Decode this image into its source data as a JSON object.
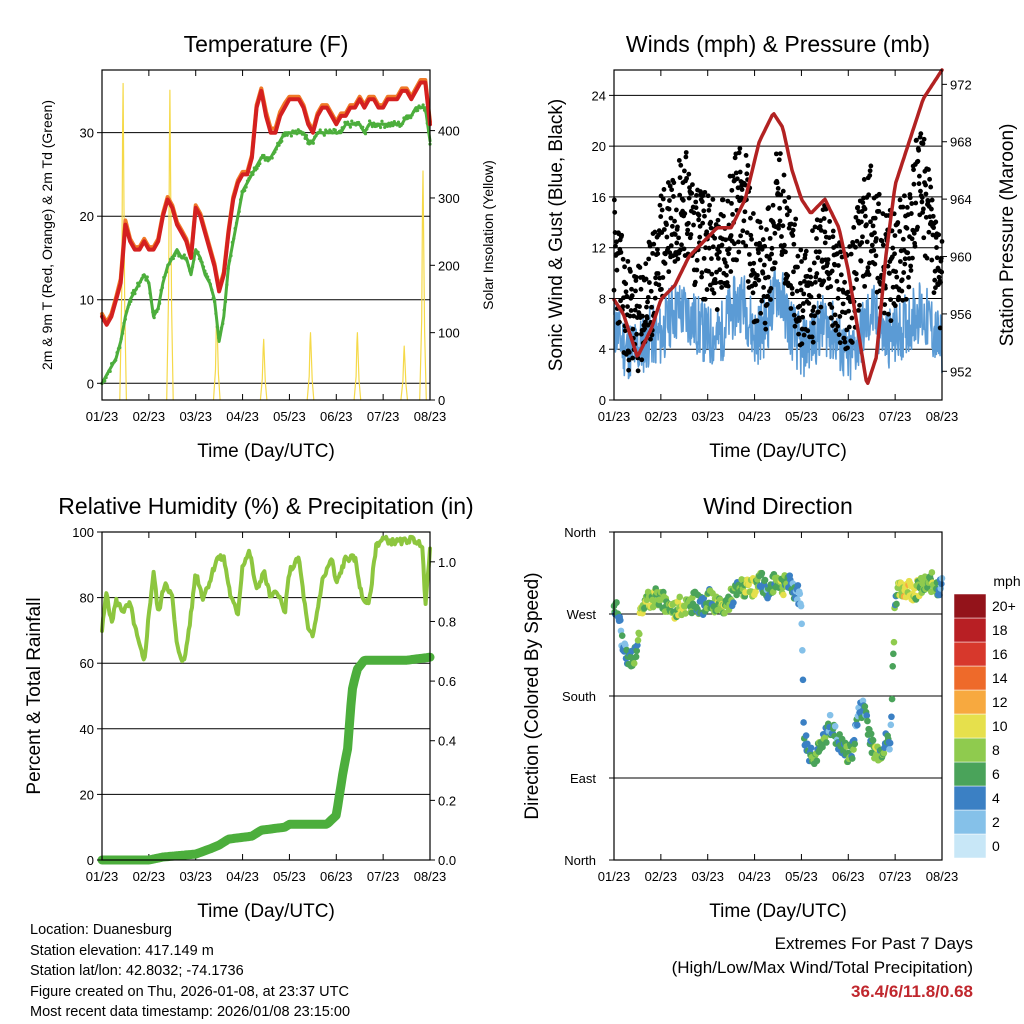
{
  "chart_data": [
    {
      "type": "line",
      "title": "Temperature (F)",
      "xlabel": "Time (Day/UTC)",
      "ylabel": "2m & 9m T (Red, Orange) & 2m Td (Green)",
      "ylabel_right": "Solar Insolation (Yellow)",
      "x_ticks": [
        "01/23",
        "02/23",
        "03/23",
        "04/23",
        "05/23",
        "06/23",
        "07/23",
        "08/23"
      ],
      "y_ticks": [
        0,
        10,
        20,
        30
      ],
      "y2_ticks": [
        0,
        100,
        200,
        300,
        400
      ],
      "ylim": [
        -2,
        37.5
      ],
      "y2lim": [
        0,
        490
      ],
      "grid": true,
      "x": [
        0.0,
        0.1,
        0.2,
        0.3,
        0.4,
        0.5,
        0.6,
        0.7,
        0.8,
        0.9,
        1.0,
        1.1,
        1.2,
        1.3,
        1.4,
        1.5,
        1.6,
        1.7,
        1.8,
        1.9,
        2.0,
        2.1,
        2.2,
        2.3,
        2.4,
        2.5,
        2.6,
        2.7,
        2.8,
        2.9,
        3.0,
        3.1,
        3.2,
        3.3,
        3.4,
        3.5,
        3.6,
        3.7,
        3.8,
        3.9,
        4.0,
        4.1,
        4.2,
        4.3,
        4.4,
        4.5,
        4.6,
        4.7,
        4.8,
        4.9,
        5.0,
        5.1,
        5.2,
        5.3,
        5.4,
        5.5,
        5.6,
        5.7,
        5.8,
        5.9,
        6.0,
        6.1,
        6.2,
        6.3,
        6.4,
        6.5,
        6.6,
        6.7,
        6.8,
        6.9,
        7.0
      ],
      "series": [
        {
          "name": "2m T",
          "color": "#d42020",
          "values": [
            8,
            7,
            8,
            10,
            12,
            19,
            17,
            16,
            16,
            17,
            16,
            16,
            17,
            20,
            22,
            21,
            19,
            18,
            17,
            15,
            21,
            20,
            18,
            16,
            14,
            11,
            13,
            18,
            22,
            24,
            25,
            25,
            27,
            33,
            35,
            32,
            30,
            30,
            32,
            33,
            34,
            34,
            34,
            33,
            31,
            30,
            32,
            33,
            33,
            32,
            31,
            32,
            32,
            33,
            33,
            34,
            33,
            34,
            34,
            33,
            33,
            34,
            34,
            34,
            35,
            35,
            34,
            35,
            36,
            36,
            31
          ]
        },
        {
          "name": "9m T",
          "color": "#f07a28",
          "values": [
            8.3,
            7.3,
            8.3,
            10.3,
            12.5,
            19.5,
            17.3,
            16.3,
            16.3,
            17.3,
            16.3,
            16.3,
            17.3,
            20.3,
            22.3,
            21.3,
            19.3,
            18.3,
            17.3,
            15.3,
            21.3,
            20.3,
            18.3,
            16.3,
            14.3,
            11.3,
            13.3,
            18.3,
            22.3,
            24.3,
            25.3,
            25.3,
            27.3,
            33.3,
            35.3,
            32.5,
            30.5,
            30.5,
            32.5,
            33.5,
            34.3,
            34.3,
            34.3,
            33.3,
            31.3,
            30.3,
            32.3,
            33.3,
            33.3,
            32.3,
            31.3,
            32.3,
            32.3,
            33.3,
            33.3,
            34.3,
            33.3,
            34.3,
            34.3,
            33.3,
            33.3,
            34.3,
            34.3,
            34.3,
            35.3,
            35.3,
            34.3,
            35.3,
            36.3,
            36.3,
            31.3
          ]
        },
        {
          "name": "2m Td",
          "color": "#4cae3c",
          "values": [
            0,
            1,
            2,
            3,
            5,
            8,
            10,
            11,
            12,
            13,
            12,
            8,
            9,
            12,
            14,
            15,
            16,
            15,
            15,
            13,
            16,
            15,
            13,
            12,
            10,
            5,
            8,
            14,
            17,
            20,
            23,
            24,
            25,
            26,
            27,
            27,
            27,
            28,
            29,
            30,
            30,
            30,
            30,
            30,
            29,
            29,
            30,
            30,
            30,
            30,
            30,
            30,
            31,
            31,
            31,
            31,
            30,
            31,
            31,
            31,
            31,
            31,
            31,
            31,
            31,
            32,
            32,
            33,
            33,
            33,
            29
          ]
        },
        {
          "name": "Solar Insolation",
          "color": "#f5d949",
          "axis": "right",
          "peaks": [
            {
              "day": 0.45,
              "value": 470
            },
            {
              "day": 1.45,
              "value": 460
            },
            {
              "day": 2.45,
              "value": 130
            },
            {
              "day": 3.45,
              "value": 90
            },
            {
              "day": 4.45,
              "value": 100
            },
            {
              "day": 5.45,
              "value": 100
            },
            {
              "day": 6.45,
              "value": 80
            },
            {
              "day": 6.85,
              "value": 340
            }
          ]
        }
      ]
    },
    {
      "type": "scatter",
      "title": "Winds (mph) & Pressure (mb)",
      "xlabel": "Time (Day/UTC)",
      "ylabel": "Sonic Wind & Gust (Blue, Black)",
      "ylabel_right": "Station Pressure (Maroon)",
      "x_ticks": [
        "01/23",
        "02/23",
        "03/23",
        "04/23",
        "05/23",
        "06/23",
        "07/23",
        "08/23"
      ],
      "y_ticks": [
        0,
        4,
        8,
        12,
        16,
        20,
        24
      ],
      "y2_ticks": [
        952,
        956,
        960,
        964,
        968,
        972
      ],
      "ylim": [
        0,
        26
      ],
      "y2lim": [
        950,
        973
      ],
      "grid": true,
      "series": [
        {
          "name": "Sonic Wind",
          "color": "#5b9bd5",
          "x": [
            0.0,
            0.25,
            0.5,
            0.75,
            1.0,
            1.25,
            1.5,
            1.75,
            2.0,
            2.25,
            2.5,
            2.75,
            3.0,
            3.25,
            3.5,
            3.75,
            4.0,
            4.25,
            4.5,
            4.75,
            5.0,
            5.25,
            5.5,
            5.75,
            6.0,
            6.25,
            6.5,
            6.75,
            7.0
          ],
          "values": [
            6,
            4,
            4,
            5,
            5,
            7,
            7,
            6,
            5,
            5,
            7,
            8,
            5,
            6,
            9,
            6,
            4,
            5,
            6,
            5,
            3,
            5,
            7,
            5,
            5,
            6,
            7,
            6,
            4
          ]
        },
        {
          "name": "Gust",
          "color": "#000000",
          "x": [
            0.0,
            0.25,
            0.5,
            0.75,
            1.0,
            1.25,
            1.5,
            1.75,
            2.0,
            2.25,
            2.5,
            2.75,
            3.0,
            3.25,
            3.5,
            3.75,
            4.0,
            4.25,
            4.5,
            4.75,
            5.0,
            5.25,
            5.5,
            5.75,
            6.0,
            6.25,
            6.5,
            6.75,
            7.0
          ],
          "values": [
            12,
            7,
            6,
            8,
            12,
            15,
            16,
            13,
            12,
            11,
            14,
            17,
            10,
            10,
            16,
            12,
            8,
            9,
            12,
            9,
            7,
            12,
            15,
            10,
            11,
            12,
            18,
            14,
            8
          ]
        },
        {
          "name": "Station Pressure",
          "color": "#b22222",
          "axis": "right",
          "x": [
            0.0,
            0.2,
            0.5,
            0.8,
            1.0,
            1.3,
            1.6,
            1.9,
            2.2,
            2.5,
            2.8,
            3.1,
            3.4,
            3.6,
            3.8,
            4.0,
            4.2,
            4.5,
            4.8,
            5.0,
            5.2,
            5.4,
            5.6,
            5.8,
            6.0,
            6.2,
            6.4,
            6.6,
            6.8,
            7.0
          ],
          "values": [
            957,
            956,
            953,
            955,
            957,
            958,
            960,
            961,
            962,
            962,
            964,
            968,
            970,
            969,
            966,
            964,
            963,
            964,
            962,
            959,
            955,
            951,
            953,
            960,
            965,
            967,
            969,
            971,
            972,
            973
          ]
        }
      ]
    },
    {
      "type": "line",
      "title": "Relative Humidity (%) & Precipitation (in)",
      "xlabel": "Time (Day/UTC)",
      "ylabel": "Percent & Total Rainfall",
      "x_ticks": [
        "01/23",
        "02/23",
        "03/23",
        "04/23",
        "05/23",
        "06/23",
        "07/23",
        "08/23"
      ],
      "y_ticks": [
        0,
        20,
        40,
        60,
        80,
        100
      ],
      "y2_ticks": [
        0.0,
        0.2,
        0.4,
        0.6,
        0.8,
        1.0
      ],
      "ylim": [
        0,
        100
      ],
      "y2lim": [
        0,
        1.1
      ],
      "grid": true,
      "series": [
        {
          "name": "Relative Humidity",
          "color": "#8dc63f",
          "x": [
            0.0,
            0.1,
            0.2,
            0.3,
            0.45,
            0.6,
            0.75,
            0.9,
            1.0,
            1.1,
            1.2,
            1.35,
            1.5,
            1.6,
            1.75,
            1.9,
            2.0,
            2.15,
            2.3,
            2.45,
            2.6,
            2.75,
            2.9,
            3.0,
            3.15,
            3.3,
            3.45,
            3.6,
            3.75,
            3.9,
            4.0,
            4.2,
            4.4,
            4.5,
            4.7,
            4.9,
            5.0,
            5.2,
            5.4,
            5.55,
            5.7,
            5.85,
            6.0,
            6.2,
            6.4,
            6.6,
            6.75,
            6.85,
            6.9,
            7.0
          ],
          "values": [
            70,
            82,
            72,
            79,
            76,
            78,
            68,
            60,
            75,
            88,
            75,
            85,
            80,
            65,
            60,
            75,
            88,
            80,
            85,
            92,
            92,
            80,
            75,
            90,
            94,
            82,
            88,
            80,
            82,
            75,
            88,
            92,
            70,
            68,
            85,
            92,
            84,
            92,
            92,
            80,
            78,
            96,
            98,
            97,
            97,
            98,
            97,
            94,
            78,
            94
          ]
        },
        {
          "name": "Total Rainfall",
          "color": "#4cae3c",
          "axis": "right",
          "x": [
            0.0,
            0.5,
            1.0,
            1.3,
            2.0,
            2.35,
            2.5,
            2.7,
            3.2,
            3.4,
            3.9,
            4.0,
            4.8,
            5.0,
            5.1,
            5.15,
            5.25,
            5.3,
            5.35,
            5.45,
            5.6,
            5.8,
            6.0,
            6.5,
            7.0
          ],
          "values": [
            0.0,
            0.0,
            0.0,
            0.01,
            0.02,
            0.04,
            0.05,
            0.07,
            0.08,
            0.1,
            0.11,
            0.12,
            0.12,
            0.15,
            0.25,
            0.3,
            0.38,
            0.5,
            0.58,
            0.64,
            0.67,
            0.67,
            0.67,
            0.67,
            0.68
          ]
        }
      ]
    },
    {
      "type": "scatter",
      "title": "Wind Direction",
      "xlabel": "Time (Day/UTC)",
      "ylabel": "Direction (Colored By Speed)",
      "x_ticks": [
        "01/23",
        "02/23",
        "03/23",
        "04/23",
        "05/23",
        "06/23",
        "07/23",
        "08/23"
      ],
      "y_ticks": [
        "North",
        "East",
        "South",
        "West",
        "North"
      ],
      "ylim": [
        0,
        360
      ],
      "grid": true,
      "colorbar": {
        "title": "mph",
        "labels": [
          "0",
          "2",
          "4",
          "6",
          "8",
          "10",
          "12",
          "14",
          "16",
          "18",
          "20+"
        ],
        "colors": [
          "#c8e7f7",
          "#85c1e9",
          "#3b80c4",
          "#4aa35a",
          "#8fcb4e",
          "#e6e04c",
          "#f7a93f",
          "#ee6a2a",
          "#d7382c",
          "#b81f24",
          "#93131a"
        ]
      },
      "series": [
        {
          "name": "Direction",
          "x": [
            0.0,
            0.1,
            0.2,
            0.3,
            0.45,
            0.6,
            0.75,
            0.9,
            1.0,
            1.15,
            1.3,
            1.45,
            1.6,
            1.75,
            1.9,
            2.0,
            2.15,
            2.3,
            2.45,
            2.6,
            2.75,
            2.9,
            3.0,
            3.15,
            3.3,
            3.5,
            3.6,
            3.7,
            3.8,
            3.9,
            4.0,
            4.05,
            4.15,
            4.3,
            4.45,
            4.6,
            4.8,
            5.0,
            5.1,
            5.2,
            5.35,
            5.5,
            5.6,
            5.7,
            5.8,
            5.9,
            6.0,
            6.1,
            6.25,
            6.4,
            6.6,
            6.8,
            6.9,
            7.0
          ],
          "values": [
            280,
            270,
            230,
            220,
            225,
            280,
            285,
            290,
            285,
            280,
            275,
            280,
            280,
            285,
            275,
            290,
            280,
            275,
            285,
            295,
            300,
            295,
            300,
            305,
            295,
            310,
            300,
            305,
            300,
            295,
            285,
            140,
            120,
            115,
            125,
            150,
            130,
            115,
            120,
            160,
            170,
            125,
            120,
            120,
            130,
            130,
            290,
            295,
            300,
            295,
            300,
            305,
            300,
            300
          ],
          "speeds": [
            6,
            4,
            3,
            4,
            6,
            8,
            9,
            8,
            7,
            7,
            8,
            9,
            7,
            6,
            5,
            6,
            7,
            8,
            7,
            5,
            7,
            9,
            8,
            6,
            4,
            7,
            8,
            6,
            4,
            3,
            2,
            3,
            5,
            7,
            6,
            4,
            5,
            7,
            6,
            3,
            4,
            6,
            9,
            6,
            5,
            4,
            6,
            9,
            10,
            9,
            7,
            8,
            6,
            4
          ]
        }
      ]
    }
  ],
  "info": {
    "location": "Location: Duanesburg",
    "elevation": "Station elevation: 417.149 m",
    "latlon": "Station lat/lon: 42.8032; -74.1736",
    "created": "Figure created on Thu, 2026-01-08, at 23:37 UTC",
    "recent": "Most recent data timestamp: 2026/01/08 23:15:00"
  },
  "extremes": {
    "title": "Extremes For Past 7 Days",
    "subtitle": "(High/Low/Max Wind/Total Precipitation)",
    "values": "36.4/6/11.8/0.68"
  }
}
